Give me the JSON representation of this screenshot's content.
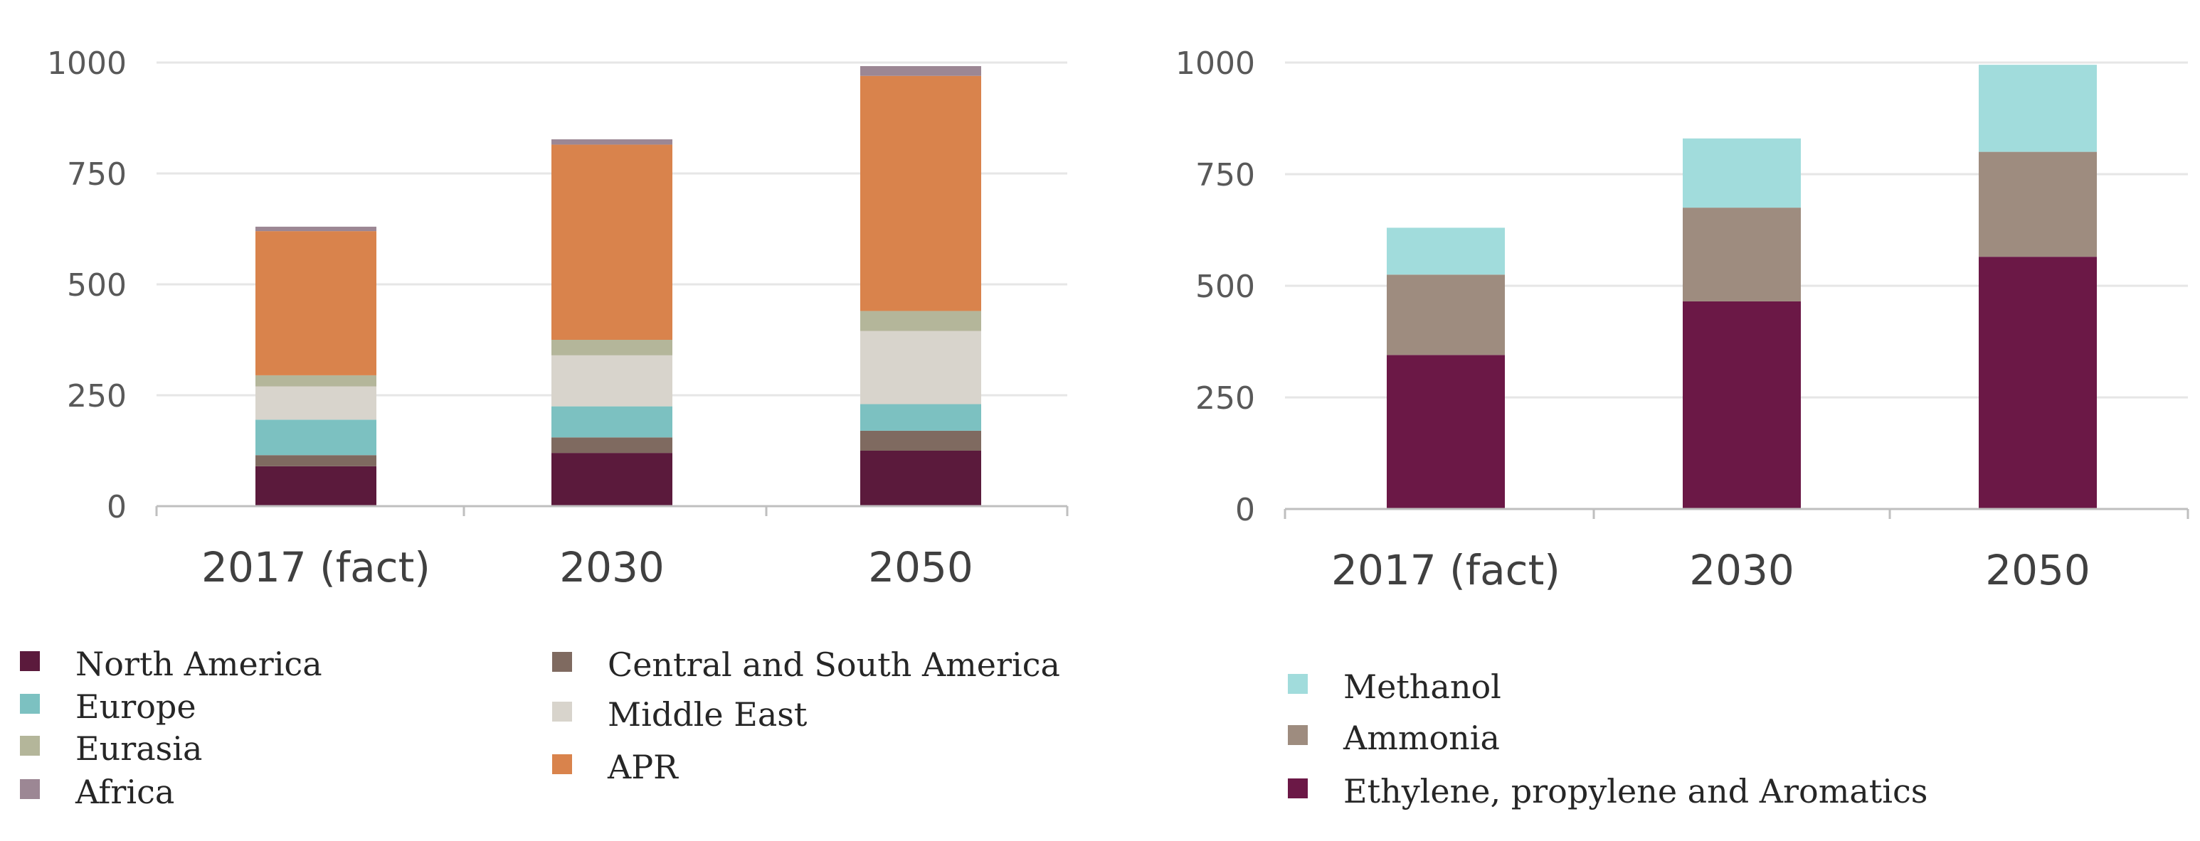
{
  "chart_data": [
    {
      "type": "bar",
      "stacked": true,
      "categories": [
        "2017 (fact)",
        "2030",
        "2050"
      ],
      "ylim": [
        0,
        1000
      ],
      "yticks": [
        0,
        250,
        500,
        750,
        1000
      ],
      "grid": true,
      "legend_position": "bottom",
      "series": [
        {
          "name": "North America",
          "color": "#5b1a3c",
          "values": [
            90,
            120,
            125
          ]
        },
        {
          "name": "Central and South America",
          "color": "#7f6a60",
          "values": [
            25,
            35,
            45
          ]
        },
        {
          "name": "Europe",
          "color": "#7cc1c1",
          "values": [
            80,
            70,
            60
          ]
        },
        {
          "name": "Middle East",
          "color": "#d8d4cc",
          "values": [
            75,
            115,
            165
          ]
        },
        {
          "name": "Eurasia",
          "color": "#b4b69a",
          "values": [
            25,
            35,
            45
          ]
        },
        {
          "name": "APR",
          "color": "#d9834c",
          "values": [
            325,
            440,
            530
          ]
        },
        {
          "name": "Africa",
          "color": "#9c8794",
          "values": [
            10,
            12,
            22
          ]
        }
      ]
    },
    {
      "type": "bar",
      "stacked": true,
      "categories": [
        "2017 (fact)",
        "2030",
        "2050"
      ],
      "ylim": [
        0,
        1000
      ],
      "yticks": [
        0,
        250,
        500,
        750,
        1000
      ],
      "grid": true,
      "legend_position": "bottom",
      "series": [
        {
          "name": "Ethylene, propylene and Aromatics",
          "color": "#6b1846",
          "values": [
            345,
            465,
            565
          ]
        },
        {
          "name": "Ammonia",
          "color": "#9e8c7f",
          "values": [
            180,
            210,
            235
          ]
        },
        {
          "name": "Methanol",
          "color": "#a1dcdc",
          "values": [
            105,
            155,
            195
          ]
        }
      ]
    }
  ],
  "legends": {
    "left": {
      "col1": [
        "North America",
        "Europe",
        "Eurasia",
        "Africa"
      ],
      "col2": [
        "Central and South America",
        "Middle East",
        "APR"
      ]
    },
    "right": [
      "Methanol",
      "Ammonia",
      "Ethylene, propylene and Aromatics"
    ]
  }
}
